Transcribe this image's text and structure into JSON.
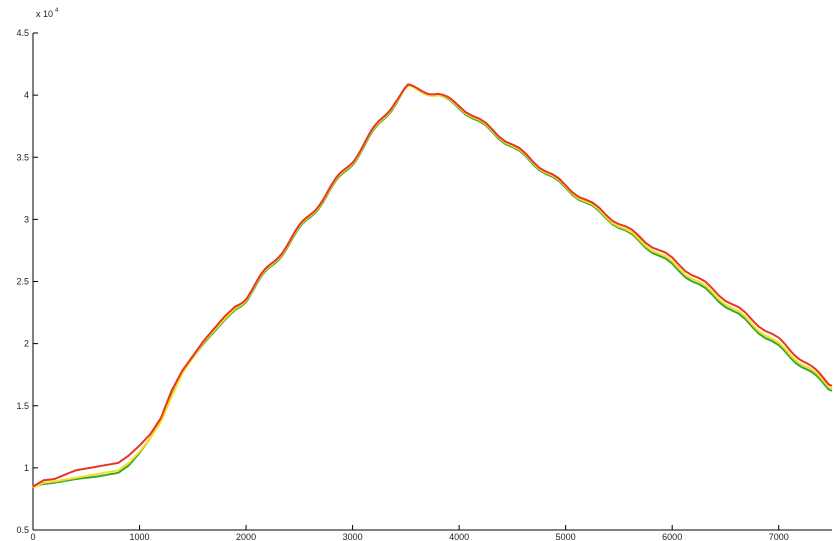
{
  "chart_data": {
    "type": "line",
    "title": "",
    "xlabel": "",
    "ylabel": "",
    "y_multiplier_text": "x 10",
    "y_multiplier_exponent": "4",
    "xlim": [
      0,
      7500
    ],
    "ylim": [
      0.5,
      4.5
    ],
    "x_ticks": [
      0,
      1000,
      2000,
      3000,
      4000,
      5000,
      6000,
      7000
    ],
    "x_tick_labels": [
      "0",
      "1000",
      "2000",
      "3000",
      "4000",
      "5000",
      "6000",
      "7000"
    ],
    "y_ticks": [
      0.5,
      1,
      1.5,
      2,
      2.5,
      3,
      3.5,
      4,
      4.5
    ],
    "y_tick_labels": [
      "0.5",
      "1",
      "1.5",
      "2",
      "2.5",
      "3",
      "3.5",
      "4",
      "4.5"
    ],
    "grid": false,
    "legend": "none",
    "series": [
      {
        "color": "#e8352a",
        "x": [
          0,
          100,
          200,
          400,
          600,
          800,
          900,
          1000,
          1100,
          1200,
          1300,
          1400,
          1600,
          1800,
          2000,
          2200,
          2400,
          2600,
          2800,
          3000,
          3200,
          3400,
          3520,
          3600,
          3800,
          4000,
          4500,
          5000,
          5500,
          6000,
          6500,
          7000,
          7250,
          7500
        ],
        "y": [
          0.85,
          0.9,
          0.91,
          0.98,
          1.01,
          1.04,
          1.1,
          1.18,
          1.27,
          1.4,
          1.62,
          1.78,
          2.02,
          2.22,
          2.38,
          2.6,
          2.82,
          3.04,
          3.26,
          3.48,
          3.72,
          3.96,
          4.07,
          4.05,
          4.01,
          3.92,
          3.6,
          3.27,
          2.97,
          2.68,
          2.36,
          2.03,
          1.85,
          1.66
        ]
      },
      {
        "color": "#f2e11c",
        "x": [
          0,
          100,
          200,
          400,
          600,
          800,
          900,
          1000,
          1100,
          1200,
          1300,
          1400,
          1600,
          1800,
          2000,
          2200,
          2400,
          2600,
          2800,
          3000,
          3200,
          3400,
          3520,
          3600,
          3800,
          4000,
          4500,
          5000,
          5500,
          6000,
          6500,
          7000,
          7250,
          7500
        ],
        "y": [
          0.84,
          0.88,
          0.89,
          0.92,
          0.95,
          0.98,
          1.04,
          1.13,
          1.24,
          1.37,
          1.57,
          1.76,
          2.01,
          2.2,
          2.37,
          2.59,
          2.81,
          3.03,
          3.25,
          3.47,
          3.71,
          3.95,
          4.06,
          4.04,
          4.0,
          3.91,
          3.59,
          3.26,
          2.95,
          2.65,
          2.33,
          1.99,
          1.82,
          1.64
        ]
      },
      {
        "color": "#3aa535",
        "x": [
          0,
          100,
          200,
          400,
          600,
          800,
          900,
          1000,
          1100,
          1200,
          1300,
          1400,
          1600,
          1800,
          2000,
          2200,
          2400,
          2600,
          2800,
          3000,
          3200,
          3400,
          3520,
          3600,
          3800,
          4000,
          4500,
          5000,
          5500,
          6000,
          6500,
          7000,
          7250,
          7500
        ],
        "y": [
          0.85,
          0.87,
          0.88,
          0.91,
          0.93,
          0.96,
          1.02,
          1.12,
          1.24,
          1.38,
          1.58,
          1.77,
          2.0,
          2.19,
          2.36,
          2.58,
          2.8,
          3.02,
          3.24,
          3.46,
          3.7,
          3.94,
          4.07,
          4.04,
          4.0,
          3.9,
          3.58,
          3.25,
          2.94,
          2.63,
          2.31,
          1.97,
          1.8,
          1.62
        ]
      }
    ]
  }
}
